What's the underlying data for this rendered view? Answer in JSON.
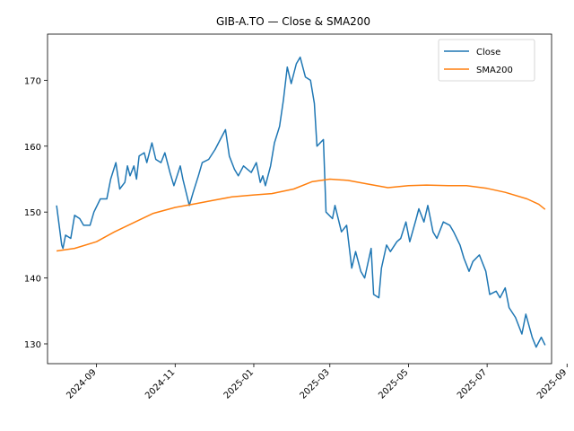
{
  "chart_data": {
    "type": "line",
    "title": "GIB-A.TO — Close & SMA200",
    "xlabel": "",
    "ylabel": "",
    "x_range": [
      "2024-07-25",
      "2025-08-20"
    ],
    "ylim": [
      127,
      177
    ],
    "x_ticks": [
      "2024-09",
      "2024-11",
      "2025-01",
      "2025-03",
      "2025-05",
      "2025-07",
      "2025-09"
    ],
    "y_ticks": [
      130,
      140,
      150,
      160,
      170
    ],
    "grid": false,
    "legend": "top-right",
    "series": [
      {
        "name": "Close",
        "color": "#1f77b4",
        "points": [
          [
            "2024-08-01",
            151.0
          ],
          [
            "2024-08-05",
            145.0
          ],
          [
            "2024-08-06",
            144.5
          ],
          [
            "2024-08-08",
            146.5
          ],
          [
            "2024-08-12",
            146.0
          ],
          [
            "2024-08-15",
            149.5
          ],
          [
            "2024-08-19",
            149.0
          ],
          [
            "2024-08-22",
            148.0
          ],
          [
            "2024-08-27",
            148.0
          ],
          [
            "2024-08-30",
            150.0
          ],
          [
            "2024-09-04",
            152.0
          ],
          [
            "2024-09-09",
            152.0
          ],
          [
            "2024-09-12",
            155.0
          ],
          [
            "2024-09-16",
            157.5
          ],
          [
            "2024-09-19",
            153.5
          ],
          [
            "2024-09-23",
            154.5
          ],
          [
            "2024-09-25",
            157.0
          ],
          [
            "2024-09-27",
            155.5
          ],
          [
            "2024-09-30",
            157.0
          ],
          [
            "2024-10-02",
            155.0
          ],
          [
            "2024-10-04",
            158.5
          ],
          [
            "2024-10-08",
            159.0
          ],
          [
            "2024-10-10",
            157.5
          ],
          [
            "2024-10-14",
            160.5
          ],
          [
            "2024-10-17",
            158.0
          ],
          [
            "2024-10-21",
            157.5
          ],
          [
            "2024-10-24",
            159.0
          ],
          [
            "2024-10-28",
            156.0
          ],
          [
            "2024-10-31",
            154.0
          ],
          [
            "2024-11-05",
            157.0
          ],
          [
            "2024-11-07",
            155.0
          ],
          [
            "2024-11-12",
            151.0
          ],
          [
            "2024-11-15",
            153.0
          ],
          [
            "2024-11-19",
            155.5
          ],
          [
            "2024-11-22",
            157.5
          ],
          [
            "2024-11-27",
            158.0
          ],
          [
            "2024-12-02",
            159.5
          ],
          [
            "2024-12-06",
            161.0
          ],
          [
            "2024-12-10",
            162.5
          ],
          [
            "2024-12-13",
            158.5
          ],
          [
            "2024-12-17",
            156.5
          ],
          [
            "2024-12-20",
            155.5
          ],
          [
            "2024-12-24",
            157.0
          ],
          [
            "2024-12-30",
            156.0
          ],
          [
            "2025-01-03",
            157.5
          ],
          [
            "2025-01-06",
            154.5
          ],
          [
            "2025-01-08",
            155.5
          ],
          [
            "2025-01-10",
            154.0
          ],
          [
            "2025-01-14",
            157.0
          ],
          [
            "2025-01-17",
            160.5
          ],
          [
            "2025-01-21",
            163.0
          ],
          [
            "2025-01-24",
            167.0
          ],
          [
            "2025-01-27",
            172.0
          ],
          [
            "2025-01-30",
            169.5
          ],
          [
            "2025-02-03",
            172.5
          ],
          [
            "2025-02-06",
            173.5
          ],
          [
            "2025-02-10",
            170.5
          ],
          [
            "2025-02-14",
            170.0
          ],
          [
            "2025-02-17",
            166.5
          ],
          [
            "2025-02-19",
            160.0
          ],
          [
            "2025-02-24",
            161.0
          ],
          [
            "2025-02-26",
            150.0
          ],
          [
            "2025-03-03",
            149.0
          ],
          [
            "2025-03-05",
            151.0
          ],
          [
            "2025-03-10",
            147.0
          ],
          [
            "2025-03-14",
            148.0
          ],
          [
            "2025-03-18",
            141.5
          ],
          [
            "2025-03-21",
            144.0
          ],
          [
            "2025-03-25",
            141.0
          ],
          [
            "2025-03-28",
            140.0
          ],
          [
            "2025-04-02",
            144.5
          ],
          [
            "2025-04-04",
            137.5
          ],
          [
            "2025-04-08",
            137.0
          ],
          [
            "2025-04-10",
            141.5
          ],
          [
            "2025-04-14",
            145.0
          ],
          [
            "2025-04-17",
            144.0
          ],
          [
            "2025-04-22",
            145.5
          ],
          [
            "2025-04-25",
            146.0
          ],
          [
            "2025-04-29",
            148.5
          ],
          [
            "2025-05-02",
            145.5
          ],
          [
            "2025-05-07",
            149.0
          ],
          [
            "2025-05-09",
            150.5
          ],
          [
            "2025-05-13",
            148.5
          ],
          [
            "2025-05-16",
            151.0
          ],
          [
            "2025-05-20",
            147.0
          ],
          [
            "2025-05-23",
            146.0
          ],
          [
            "2025-05-28",
            148.5
          ],
          [
            "2025-06-02",
            148.0
          ],
          [
            "2025-06-05",
            147.0
          ],
          [
            "2025-06-10",
            145.0
          ],
          [
            "2025-06-13",
            143.0
          ],
          [
            "2025-06-17",
            141.0
          ],
          [
            "2025-06-20",
            142.5
          ],
          [
            "2025-06-25",
            143.5
          ],
          [
            "2025-06-30",
            141.0
          ],
          [
            "2025-07-03",
            137.5
          ],
          [
            "2025-07-08",
            138.0
          ],
          [
            "2025-07-11",
            137.0
          ],
          [
            "2025-07-15",
            138.5
          ],
          [
            "2025-07-18",
            135.5
          ],
          [
            "2025-07-23",
            134.0
          ],
          [
            "2025-07-28",
            131.5
          ],
          [
            "2025-07-31",
            134.5
          ],
          [
            "2025-08-05",
            131.0
          ],
          [
            "2025-08-08",
            129.5
          ],
          [
            "2025-08-12",
            131.0
          ],
          [
            "2025-08-15",
            129.8
          ]
        ]
      },
      {
        "name": "SMA200",
        "color": "#ff7f0e",
        "points": [
          [
            "2024-08-01",
            144.1
          ],
          [
            "2024-08-15",
            144.5
          ],
          [
            "2024-09-01",
            145.5
          ],
          [
            "2024-09-15",
            147.0
          ],
          [
            "2024-10-01",
            148.5
          ],
          [
            "2024-10-15",
            149.8
          ],
          [
            "2024-11-01",
            150.7
          ],
          [
            "2024-11-15",
            151.2
          ],
          [
            "2024-12-01",
            151.8
          ],
          [
            "2024-12-15",
            152.3
          ],
          [
            "2025-01-01",
            152.6
          ],
          [
            "2025-01-15",
            152.8
          ],
          [
            "2025-02-01",
            153.5
          ],
          [
            "2025-02-15",
            154.6
          ],
          [
            "2025-03-01",
            155.0
          ],
          [
            "2025-03-15",
            154.8
          ],
          [
            "2025-04-01",
            154.2
          ],
          [
            "2025-04-15",
            153.7
          ],
          [
            "2025-05-01",
            154.0
          ],
          [
            "2025-05-15",
            154.1
          ],
          [
            "2025-06-01",
            154.0
          ],
          [
            "2025-06-15",
            154.0
          ],
          [
            "2025-07-01",
            153.6
          ],
          [
            "2025-07-15",
            153.0
          ],
          [
            "2025-08-01",
            152.0
          ],
          [
            "2025-08-10",
            151.2
          ],
          [
            "2025-08-15",
            150.4
          ]
        ]
      }
    ]
  }
}
